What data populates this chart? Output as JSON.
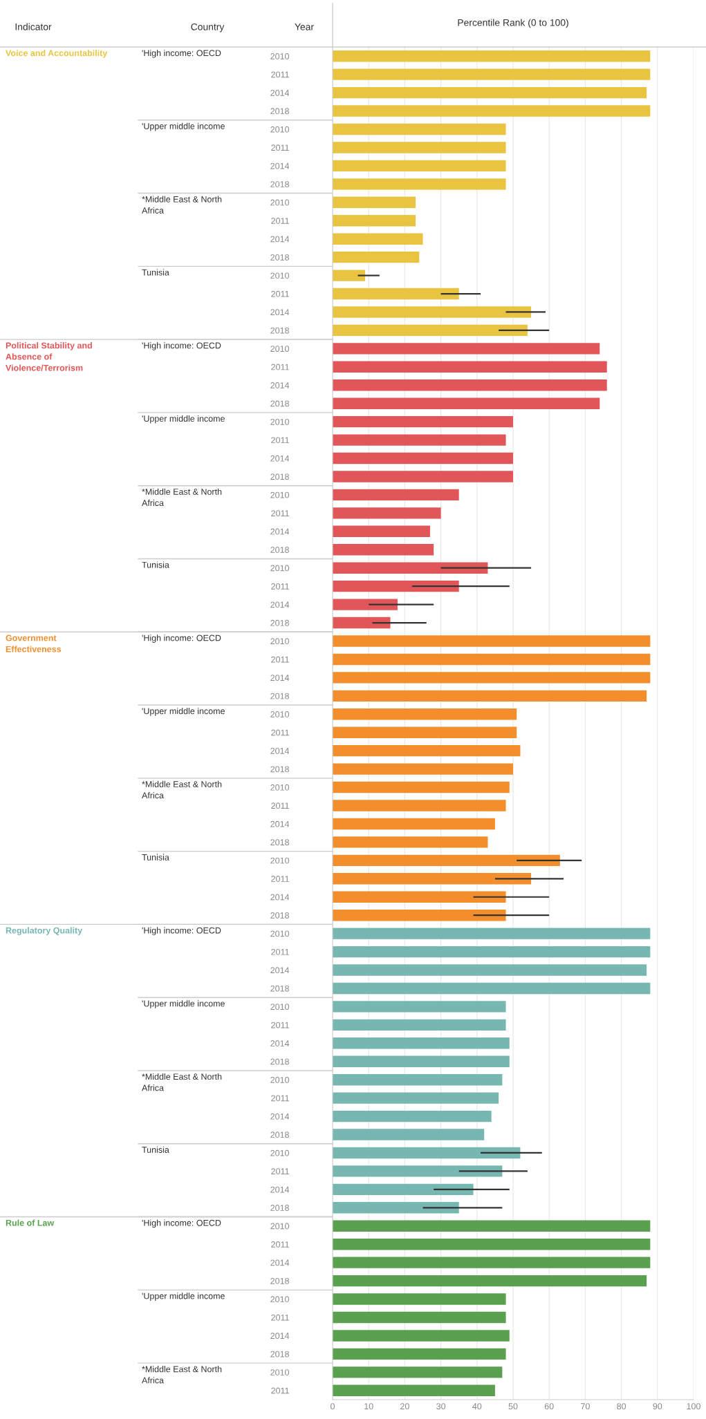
{
  "chart_data": {
    "type": "bar",
    "orientation": "horizontal",
    "xlabel": "Percentile Rank (0 to 100)",
    "xlim": [
      0,
      100
    ],
    "xticks": [
      0,
      10,
      20,
      30,
      40,
      50,
      60,
      70,
      80,
      90,
      100
    ],
    "grid": "x",
    "annotations": [
      "Indicator",
      "Country",
      "Year",
      "'High income: OECD",
      "'Upper middle income",
      "*Middle East & North\nAfrica",
      "Tunisia",
      "'High income: OECD",
      "'Upper middle income",
      "*Middle East & North\nAfrica",
      "Tunisia",
      "'High income: OECD",
      "'Upper middle income",
      "*Middle East & North\nAfrica",
      "Tunisia",
      "'High income: OECD",
      "'Upper middle income",
      "*Middle East & North\nAfrica",
      "Tunisia",
      "'High income: OECD",
      "'Upper middle income",
      "*Middle East & North\nAfrica"
    ],
    "categories": [
      "2010",
      "2011",
      "2014",
      "2018",
      "2010",
      "2011",
      "2014",
      "2018",
      "2010",
      "2011",
      "2014",
      "2018",
      "2010",
      "2011",
      "2014",
      "2018",
      "2010",
      "2011",
      "2014",
      "2018",
      "2010",
      "2011",
      "2014",
      "2018",
      "2010",
      "2011",
      "2014",
      "2018",
      "2010",
      "2011",
      "2014",
      "2018",
      "2010",
      "2011",
      "2014",
      "2018",
      "2010",
      "2011",
      "2014",
      "2018",
      "2010",
      "2011",
      "2014",
      "2018",
      "2010",
      "2011",
      "2014",
      "2018",
      "2010",
      "2011",
      "2014",
      "2018",
      "2010",
      "2011",
      "2014",
      "2018",
      "2010",
      "2011",
      "2014",
      "2018",
      "2010",
      "2011",
      "2014",
      "2018",
      "2010",
      "2011",
      "2014",
      "2018",
      "2010",
      "2011",
      "2014",
      "2018",
      "2010",
      "2011"
    ],
    "series": [
      {
        "name": "Voice and Accountability",
        "color": "#e9c440",
        "values": [
          88,
          88,
          87,
          88,
          48,
          48,
          48,
          48,
          23,
          23,
          25,
          24,
          9,
          35,
          55,
          54,
          null,
          null,
          null,
          null,
          null,
          null,
          null,
          null,
          null,
          null,
          null,
          null,
          null,
          null,
          null,
          null,
          null,
          null,
          null,
          null,
          null,
          null,
          null,
          null,
          null,
          null,
          null,
          null,
          null,
          null,
          null,
          null,
          null,
          null,
          null,
          null,
          null,
          null,
          null,
          null,
          null,
          null,
          null,
          null,
          null,
          null,
          null,
          null,
          null,
          null,
          null,
          null,
          null,
          null,
          null,
          null,
          null,
          null
        ],
        "errors": [
          null,
          null,
          null,
          null,
          null,
          null,
          null,
          null,
          null,
          null,
          null,
          null,
          [
            7,
            13
          ],
          [
            30,
            41
          ],
          [
            48,
            59
          ],
          [
            46,
            60
          ],
          null,
          null,
          null,
          null,
          null,
          null,
          null,
          null,
          null,
          null,
          null,
          null,
          null,
          null,
          null,
          null,
          null,
          null,
          null,
          null,
          null,
          null,
          null,
          null,
          null,
          null,
          null,
          null,
          null,
          null,
          null,
          null,
          null,
          null,
          null,
          null,
          null,
          null,
          null,
          null,
          null,
          null,
          null,
          null,
          null,
          null,
          null,
          null,
          null,
          null,
          null,
          null,
          null,
          null,
          null,
          null,
          null,
          null
        ]
      },
      {
        "name": "Political Stability and\nAbsence of\nViolence/Terrorism",
        "color": "#e15759",
        "values": [
          null,
          null,
          null,
          null,
          null,
          null,
          null,
          null,
          null,
          null,
          null,
          null,
          null,
          null,
          null,
          null,
          74,
          76,
          76,
          74,
          50,
          48,
          50,
          50,
          35,
          30,
          27,
          28,
          43,
          35,
          18,
          16,
          null,
          null,
          null,
          null,
          null,
          null,
          null,
          null,
          null,
          null,
          null,
          null,
          null,
          null,
          null,
          null,
          null,
          null,
          null,
          null,
          null,
          null,
          null,
          null,
          null,
          null,
          null,
          null,
          null,
          null,
          null,
          null,
          null,
          null,
          null,
          null,
          null,
          null,
          null,
          null,
          null,
          null
        ],
        "errors": [
          null,
          null,
          null,
          null,
          null,
          null,
          null,
          null,
          null,
          null,
          null,
          null,
          null,
          null,
          null,
          null,
          null,
          null,
          null,
          null,
          null,
          null,
          null,
          null,
          null,
          null,
          null,
          null,
          [
            30,
            55
          ],
          [
            22,
            49
          ],
          [
            10,
            28
          ],
          [
            11,
            26
          ],
          null,
          null,
          null,
          null,
          null,
          null,
          null,
          null,
          null,
          null,
          null,
          null,
          null,
          null,
          null,
          null,
          null,
          null,
          null,
          null,
          null,
          null,
          null,
          null,
          null,
          null,
          null,
          null,
          null,
          null,
          null,
          null,
          null,
          null,
          null,
          null,
          null,
          null,
          null,
          null,
          null,
          null
        ]
      },
      {
        "name": "Government\nEffectiveness",
        "color": "#f28e2b",
        "values": [
          null,
          null,
          null,
          null,
          null,
          null,
          null,
          null,
          null,
          null,
          null,
          null,
          null,
          null,
          null,
          null,
          null,
          null,
          null,
          null,
          null,
          null,
          null,
          null,
          null,
          null,
          null,
          null,
          null,
          null,
          null,
          null,
          88,
          88,
          88,
          87,
          51,
          51,
          52,
          50,
          49,
          48,
          45,
          43,
          63,
          55,
          48,
          48,
          null,
          null,
          null,
          null,
          null,
          null,
          null,
          null,
          null,
          null,
          null,
          null,
          null,
          null,
          null,
          null,
          null,
          null,
          null,
          null,
          null,
          null,
          null,
          null,
          null,
          null
        ],
        "errors": [
          null,
          null,
          null,
          null,
          null,
          null,
          null,
          null,
          null,
          null,
          null,
          null,
          null,
          null,
          null,
          null,
          null,
          null,
          null,
          null,
          null,
          null,
          null,
          null,
          null,
          null,
          null,
          null,
          null,
          null,
          null,
          null,
          null,
          null,
          null,
          null,
          null,
          null,
          null,
          null,
          null,
          null,
          null,
          null,
          [
            51,
            69
          ],
          [
            45,
            64
          ],
          [
            39,
            60
          ],
          [
            39,
            60
          ],
          null,
          null,
          null,
          null,
          null,
          null,
          null,
          null,
          null,
          null,
          null,
          null,
          null,
          null,
          null,
          null,
          null,
          null,
          null,
          null,
          null,
          null,
          null,
          null,
          null,
          null
        ]
      },
      {
        "name": "Regulatory Quality",
        "color": "#76b7b2",
        "values": [
          null,
          null,
          null,
          null,
          null,
          null,
          null,
          null,
          null,
          null,
          null,
          null,
          null,
          null,
          null,
          null,
          null,
          null,
          null,
          null,
          null,
          null,
          null,
          null,
          null,
          null,
          null,
          null,
          null,
          null,
          null,
          null,
          null,
          null,
          null,
          null,
          null,
          null,
          null,
          null,
          null,
          null,
          null,
          null,
          null,
          null,
          null,
          null,
          88,
          88,
          87,
          88,
          48,
          48,
          49,
          49,
          47,
          46,
          44,
          42,
          52,
          47,
          39,
          35,
          null,
          null,
          null,
          null,
          null,
          null,
          null,
          null,
          null,
          null
        ],
        "errors": [
          null,
          null,
          null,
          null,
          null,
          null,
          null,
          null,
          null,
          null,
          null,
          null,
          null,
          null,
          null,
          null,
          null,
          null,
          null,
          null,
          null,
          null,
          null,
          null,
          null,
          null,
          null,
          null,
          null,
          null,
          null,
          null,
          null,
          null,
          null,
          null,
          null,
          null,
          null,
          null,
          null,
          null,
          null,
          null,
          null,
          null,
          null,
          null,
          null,
          null,
          null,
          null,
          null,
          null,
          null,
          null,
          null,
          null,
          null,
          null,
          [
            41,
            58
          ],
          [
            35,
            54
          ],
          [
            28,
            49
          ],
          [
            25,
            47
          ],
          null,
          null,
          null,
          null,
          null,
          null,
          null,
          null,
          null,
          null
        ]
      },
      {
        "name": "Rule of Law",
        "color": "#59a14f",
        "values": [
          null,
          null,
          null,
          null,
          null,
          null,
          null,
          null,
          null,
          null,
          null,
          null,
          null,
          null,
          null,
          null,
          null,
          null,
          null,
          null,
          null,
          null,
          null,
          null,
          null,
          null,
          null,
          null,
          null,
          null,
          null,
          null,
          null,
          null,
          null,
          null,
          null,
          null,
          null,
          null,
          null,
          null,
          null,
          null,
          null,
          null,
          null,
          null,
          null,
          null,
          null,
          null,
          null,
          null,
          null,
          null,
          null,
          null,
          null,
          null,
          null,
          null,
          null,
          null,
          88,
          88,
          88,
          87,
          48,
          48,
          49,
          48,
          47,
          45
        ]
      }
    ]
  }
}
